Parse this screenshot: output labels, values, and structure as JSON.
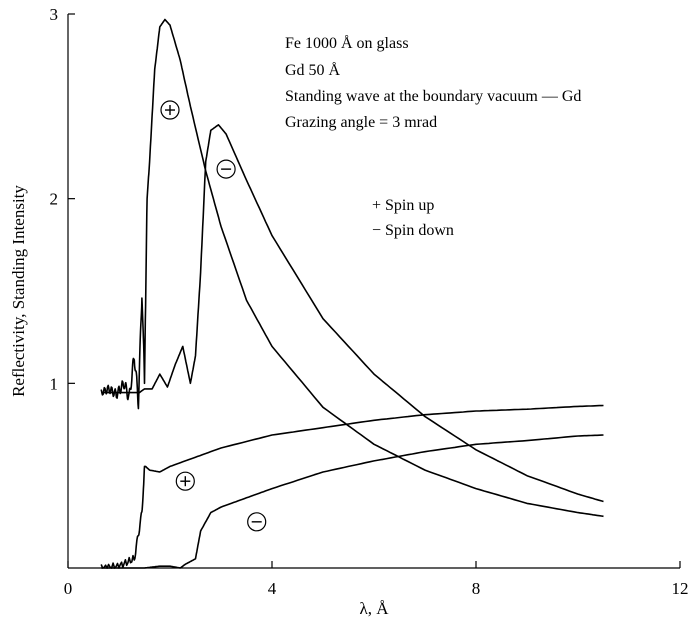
{
  "chart_data": {
    "type": "line",
    "title": "",
    "xlabel": "λ, Å",
    "ylabel": "Reflectivity, Standing Intensity",
    "xlim": [
      0,
      12
    ],
    "ylim": [
      0,
      3
    ],
    "x_ticks": [
      0,
      4,
      8,
      12
    ],
    "y_ticks": [
      1,
      2,
      3
    ],
    "x_tick_labels": [
      "0",
      "4",
      "8",
      "12"
    ],
    "y_tick_labels": [
      "1",
      "2",
      "3"
    ],
    "grid": false,
    "annotations": [
      "Fe 1000 Å on glass",
      "Gd 50 Å",
      "Standing wave at the boundary vacuum — Gd",
      "Grazing angle = 3 mrad"
    ],
    "legend": [
      "+ Spin up",
      "− Spin down"
    ],
    "series": [
      {
        "group": "standing-intensity",
        "label": "+",
        "x": [
          0.65,
          0.8,
          0.95,
          1.1,
          1.2,
          1.3,
          1.38,
          1.45,
          1.5,
          1.55,
          1.6,
          1.7,
          1.8,
          1.9,
          2.0,
          2.2,
          2.4,
          2.7,
          3.0,
          3.5,
          4.0,
          5.0,
          6.0,
          7.0,
          8.0,
          9.0,
          10.0,
          10.5
        ],
        "y": [
          0.95,
          0.97,
          0.94,
          1.0,
          0.92,
          1.15,
          0.9,
          1.5,
          1.0,
          2.0,
          2.2,
          2.7,
          2.93,
          2.97,
          2.94,
          2.75,
          2.5,
          2.15,
          1.85,
          1.45,
          1.2,
          0.87,
          0.67,
          0.53,
          0.43,
          0.35,
          0.3,
          0.28
        ]
      },
      {
        "group": "standing-intensity",
        "label": "−",
        "x": [
          0.65,
          1.0,
          1.4,
          1.5,
          1.65,
          1.8,
          1.95,
          2.1,
          2.25,
          2.4,
          2.5,
          2.6,
          2.7,
          2.8,
          2.95,
          3.1,
          3.5,
          4.0,
          5.0,
          6.0,
          7.0,
          8.0,
          9.0,
          10.0,
          10.5
        ],
        "y": [
          0.95,
          0.95,
          0.95,
          0.97,
          0.97,
          1.05,
          0.98,
          1.1,
          1.2,
          1.0,
          1.15,
          1.6,
          2.2,
          2.37,
          2.4,
          2.35,
          2.1,
          1.8,
          1.35,
          1.05,
          0.82,
          0.64,
          0.5,
          0.4,
          0.36
        ]
      },
      {
        "group": "reflectivity",
        "label": "+",
        "x": [
          0.65,
          1.0,
          1.3,
          1.45,
          1.5,
          1.52,
          1.6,
          1.8,
          2.0,
          2.5,
          3.0,
          4.0,
          5.0,
          6.0,
          7.0,
          8.0,
          9.0,
          10.0,
          10.5
        ],
        "y": [
          0.0,
          0.01,
          0.05,
          0.3,
          0.55,
          0.55,
          0.53,
          0.52,
          0.55,
          0.6,
          0.65,
          0.72,
          0.76,
          0.8,
          0.83,
          0.85,
          0.86,
          0.875,
          0.88
        ]
      },
      {
        "group": "reflectivity",
        "label": "−",
        "x": [
          0.65,
          1.5,
          1.8,
          2.0,
          2.2,
          2.3,
          2.5,
          2.6,
          2.8,
          3.0,
          3.5,
          4.0,
          5.0,
          6.0,
          7.0,
          8.0,
          9.0,
          10.0,
          10.5
        ],
        "y": [
          0.0,
          0.0,
          0.01,
          0.01,
          0.0,
          0.02,
          0.05,
          0.2,
          0.3,
          0.33,
          0.38,
          0.43,
          0.52,
          0.58,
          0.63,
          0.67,
          0.69,
          0.715,
          0.72
        ]
      }
    ],
    "markers": [
      {
        "sign": "+",
        "x": 2.0,
        "y": 2.48
      },
      {
        "sign": "−",
        "x": 3.1,
        "y": 2.16
      },
      {
        "sign": "+",
        "x": 2.3,
        "y": 0.47
      },
      {
        "sign": "−",
        "x": 3.7,
        "y": 0.25
      }
    ]
  }
}
